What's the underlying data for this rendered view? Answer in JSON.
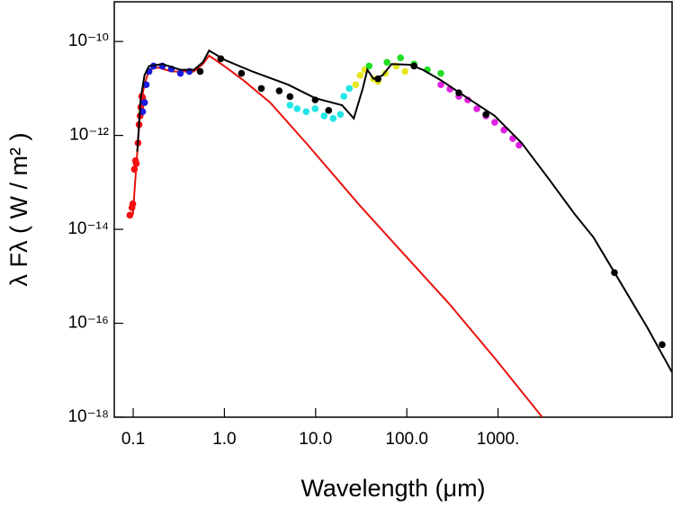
{
  "chart_data": {
    "type": "scatter",
    "xlabel": "Wavelength (μm)",
    "ylabel": "λ Fλ  ( W / m² )",
    "xscale": "log",
    "yscale": "log",
    "xlim": [
      0.062,
      81000
    ],
    "ylim": [
      1e-18,
      7e-10
    ],
    "xticks": [
      0.1,
      {
        "value": 1,
        "label": "1.0"
      },
      {
        "value": 10,
        "label": "10.0"
      },
      {
        "value": 100,
        "label": "100.0"
      },
      {
        "value": 1000,
        "label": "1000."
      }
    ],
    "yticks": [
      {
        "value": 1e-18,
        "label": "10⁻¹⁸"
      },
      {
        "value": 1e-16,
        "label": "10⁻¹⁶"
      },
      {
        "value": 1e-14,
        "label": "10⁻¹⁴"
      },
      {
        "value": 1e-12,
        "label": "10⁻¹²"
      },
      {
        "value": 1e-10,
        "label": "10⁻¹⁰"
      }
    ],
    "series": [
      {
        "mode": "line",
        "color": "#e8130f",
        "x": [
          0.099,
          0.111,
          0.121,
          0.133,
          0.149,
          0.187,
          0.262,
          0.368,
          0.463,
          0.58,
          0.68,
          1.02,
          1.61,
          3.18,
          7.87,
          30.6,
          95.5,
          297,
          920,
          3058
        ],
        "values": [
          2e-14,
          4.5e-13,
          5e-12,
          1.2e-11,
          2.5e-11,
          2.8e-11,
          2.3e-11,
          2.3e-11,
          2.3e-11,
          3.3e-11,
          5e-11,
          2.9e-11,
          1.5e-11,
          5e-12,
          6.9e-13,
          3.2e-14,
          2.8e-15,
          2.5e-16,
          1.8e-17,
          1e-18
        ]
      },
      {
        "mode": "markers",
        "color": "#f21010",
        "x": [
          0.092,
          0.097,
          0.099,
          0.103,
          0.106,
          0.108,
          0.113,
          0.116,
          0.119,
          0.121,
          0.124,
          0.127,
          0.133
        ],
        "values": [
          2e-14,
          2.9e-14,
          3.5e-14,
          1.9e-13,
          2.9e-13,
          2.5e-13,
          6.9e-13,
          1.7e-12,
          2.6e-12,
          4e-12,
          6.8e-12,
          6.3e-12,
          5e-12
        ]
      },
      {
        "mode": "markers",
        "color": "#1a1ae0",
        "x": [
          0.127,
          0.133,
          0.139,
          0.149,
          0.167,
          0.209,
          0.262,
          0.329,
          0.413
        ],
        "values": [
          3.2e-12,
          5e-12,
          1.2e-11,
          2.3e-11,
          3e-11,
          3e-11,
          2.6e-11,
          2.1e-11,
          2.3e-11
        ]
      },
      {
        "mode": "markers",
        "color": "#22e6e6",
        "x": [
          5.24,
          6.28,
          7.87,
          9.89,
          12.4,
          15.6,
          18.7,
          20.4,
          23.4
        ],
        "values": [
          4.4e-12,
          3.7e-12,
          3.2e-12,
          3.7e-12,
          2.6e-12,
          2.3e-12,
          2.8e-12,
          6.8e-12,
          1e-11
        ]
      },
      {
        "mode": "markers",
        "color": "#e6e620",
        "x": [
          27.5,
          30.8,
          34.5,
          43.1,
          48.3,
          58.1,
          76.4,
          95.5
        ],
        "values": [
          1.2e-11,
          1.9e-11,
          2.5e-11,
          1.6e-11,
          1.4e-11,
          2.1e-11,
          3e-11,
          2.3e-11
        ]
      },
      {
        "mode": "markers",
        "color": "#22dd22",
        "x": [
          38.6,
          60.7,
          85.4,
          120,
          168,
          236
        ],
        "values": [
          3e-11,
          3.6e-11,
          4.5e-11,
          3.3e-11,
          2.5e-11,
          2.1e-11
        ]
      },
      {
        "mode": "markers",
        "color": "#e020e0",
        "x": [
          236,
          297,
          372,
          466,
          586,
          737,
          920,
          1160,
          1450,
          1700
        ],
        "values": [
          1.2e-11,
          9.7e-12,
          6.8e-12,
          5.7e-12,
          3.7e-12,
          2.6e-12,
          1.9e-12,
          1.3e-12,
          8.6e-13,
          6.2e-13
        ]
      },
      {
        "mode": "line",
        "color": "#000000",
        "x": [
          0.111,
          0.121,
          0.133,
          0.149,
          0.209,
          0.329,
          0.463,
          0.58,
          0.68,
          1.02,
          2.02,
          5.0,
          9.89,
          19.5,
          26.2,
          32.9,
          36.9,
          43.1,
          54.2,
          68.1,
          107,
          150,
          236,
          466,
          920,
          1815,
          3583,
          7070,
          11100,
          21870,
          43200,
          81000
        ],
        "values": [
          4.5e-13,
          6.2e-12,
          1.9e-11,
          3e-11,
          3.3e-11,
          2.5e-11,
          2.5e-11,
          3.6e-11,
          6.4e-11,
          4e-11,
          2.3e-11,
          1.2e-11,
          6.2e-12,
          4.4e-12,
          2.3e-12,
          1e-11,
          2.5e-11,
          1.6e-11,
          1.9e-11,
          3.3e-11,
          3.2e-11,
          2.5e-11,
          1.5e-11,
          6.2e-12,
          2.6e-12,
          6.9e-13,
          1.2e-13,
          2e-14,
          6.8e-15,
          7.5e-16,
          8.2e-17,
          9e-18
        ]
      },
      {
        "mode": "markers",
        "color": "#000000",
        "x": [
          0.542,
          0.913,
          1.54,
          2.54,
          3.99,
          5.24,
          9.89,
          13.9,
          48.3,
          120,
          372,
          737,
          18900,
          63000
        ],
        "values": [
          2.3e-11,
          4.3e-11,
          2.1e-11,
          1e-11,
          8.9e-12,
          6.7e-12,
          5.7e-12,
          3.4e-12,
          1.6e-11,
          3e-11,
          8.1e-12,
          2.8e-12,
          1.2e-15,
          3.5e-17
        ]
      }
    ]
  }
}
